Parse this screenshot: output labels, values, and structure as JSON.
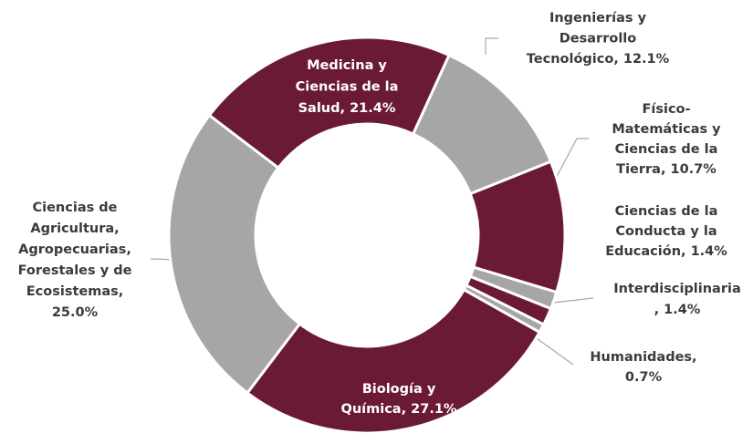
{
  "chart_data": {
    "type": "donut",
    "values": [
      12.1,
      10.7,
      1.4,
      1.4,
      0.7,
      27.1,
      25.0,
      21.4
    ],
    "value_labels": [
      [
        "Ingenierías y",
        "Desarrollo",
        "Tecnológico, 12.1%"
      ],
      [
        "Físico-",
        "Matemáticas y",
        "Ciencias de la",
        "Tierra, 10.7%"
      ],
      [
        "Ciencias de la",
        "Conducta y la",
        "Educación, 1.4%"
      ],
      [
        "Interdisciplinaria",
        ", 1.4%"
      ],
      [
        "Humanidades,",
        "0.7%"
      ],
      [
        "Biología y",
        "Química, 27.1%"
      ],
      [
        "Ciencias de",
        "Agricultura,",
        "Agropecuarias,",
        "Forestales y de",
        "Ecosistemas,",
        "25.0%"
      ],
      [
        "Medicina y",
        "Ciencias de la",
        "Salud, 21.4%"
      ]
    ],
    "colors": [
      "#a6a6a6",
      "#6b1a33",
      "#a6a6a6",
      "#6b1a33",
      "#a6a6a6",
      "#6b1a33",
      "#a6a6a6",
      "#6b1a33"
    ]
  }
}
